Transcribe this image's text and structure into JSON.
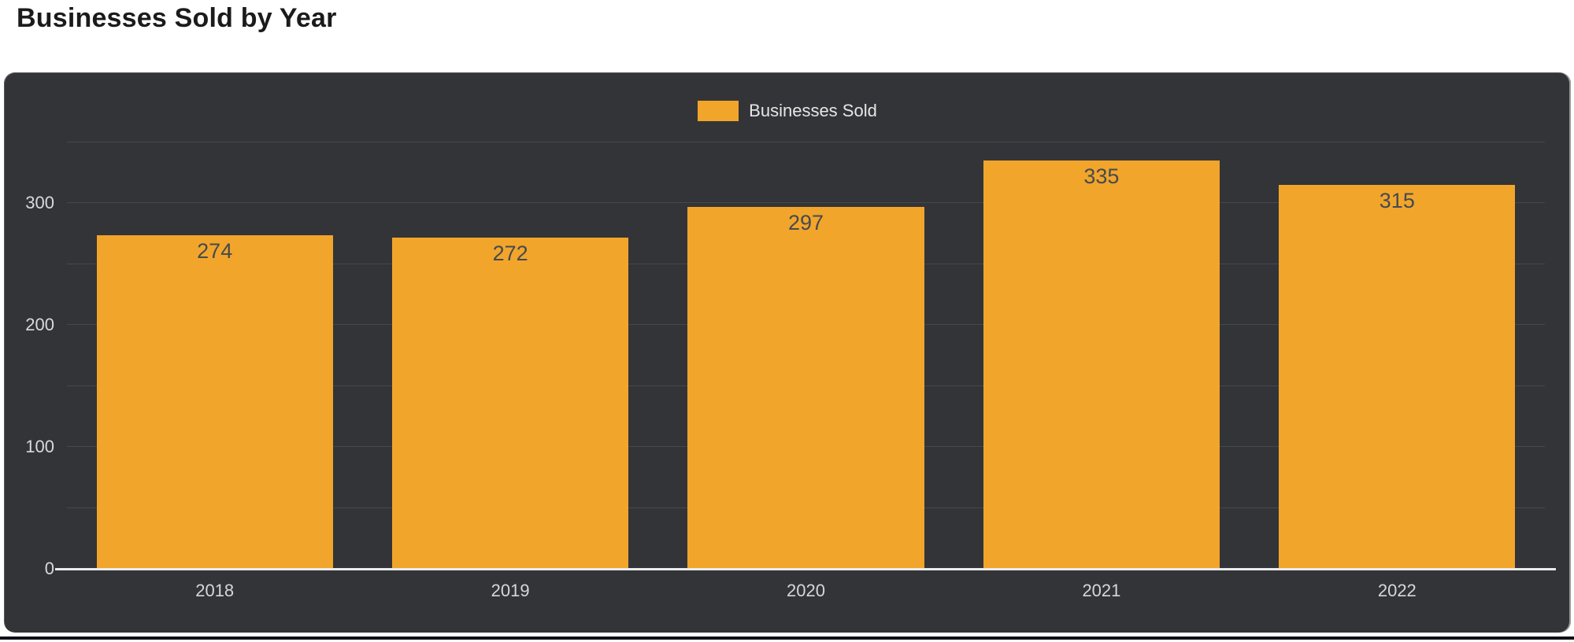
{
  "page": {
    "title": "Businesses Sold by Year"
  },
  "legend": {
    "label": "Businesses Sold"
  },
  "colors": {
    "bar": "#F2A52B",
    "panel_bg": "#333437",
    "value_label": "#454a50",
    "tick_label": "#d9dadb",
    "legend_text": "#e6e6e6",
    "axis_line": "#ebebeb",
    "gridline": "rgba(160,187,201,0.16)",
    "title_text": "#1b1b1b"
  },
  "chart_data": {
    "type": "bar",
    "title": "Businesses Sold by Year",
    "categories": [
      "2018",
      "2019",
      "2020",
      "2021",
      "2022"
    ],
    "series": [
      {
        "name": "Businesses Sold",
        "values": [
          274,
          272,
          297,
          335,
          315
        ]
      }
    ],
    "xlabel": "",
    "ylabel": "",
    "ylim": [
      0,
      350
    ],
    "ytick_labels": [
      0,
      100,
      200,
      300
    ],
    "grid_step": 50,
    "grid": true,
    "legend_position": "top-center",
    "value_labels": true,
    "bar_color": "#F2A52B",
    "background": "#333437"
  }
}
